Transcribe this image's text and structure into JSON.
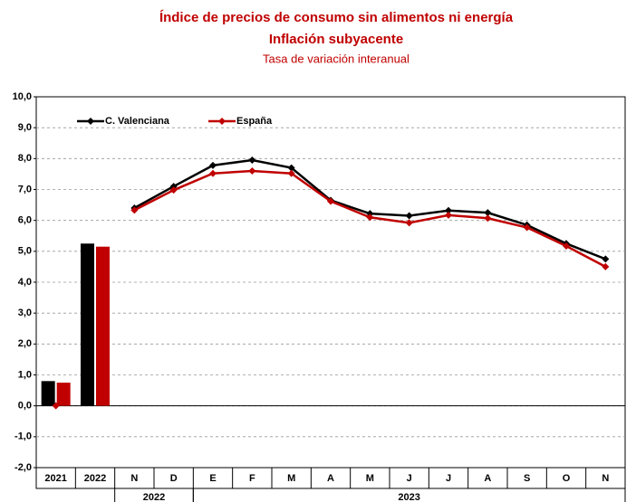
{
  "chart_data": {
    "type": "combo",
    "title": "Índice de precios de consumo sin alimentos ni energía",
    "subtitle": "Inflación subyacente",
    "subtitle2": "Tasa de variación interanual",
    "categories": [
      "2021",
      "2022",
      "N",
      "D",
      "E",
      "F",
      "M",
      "A",
      "M",
      "J",
      "J",
      "A",
      "S",
      "O",
      "N"
    ],
    "x_groups": [
      {
        "label": "2022",
        "span": [
          2,
          3
        ]
      },
      {
        "label": "2023",
        "span": [
          4,
          14
        ]
      }
    ],
    "series": [
      {
        "name": "C. Valenciana",
        "color": "#000000",
        "bar_values": [
          0.8,
          5.25,
          null,
          null,
          null,
          null,
          null,
          null,
          null,
          null,
          null,
          null,
          null,
          null,
          null
        ],
        "values": [
          null,
          null,
          6.4,
          7.1,
          7.78,
          7.95,
          7.7,
          6.65,
          6.22,
          6.15,
          6.32,
          6.25,
          5.85,
          5.25,
          4.75
        ]
      },
      {
        "name": "España",
        "color": "#c00000",
        "bar_values": [
          0.75,
          5.15,
          null,
          null,
          null,
          null,
          null,
          null,
          null,
          null,
          null,
          null,
          null,
          null,
          null
        ],
        "values": [
          0,
          null,
          6.33,
          6.98,
          7.52,
          7.6,
          7.52,
          6.62,
          6.1,
          5.92,
          6.17,
          6.07,
          5.77,
          5.17,
          4.5
        ]
      }
    ],
    "ylim": [
      -2,
      10
    ],
    "yticks": [
      {
        "value": -2,
        "label": "-2,0"
      },
      {
        "value": -1,
        "label": "-1,0"
      },
      {
        "value": 0,
        "label": "0,0"
      },
      {
        "value": 1,
        "label": "1,0"
      },
      {
        "value": 2,
        "label": "2,0"
      },
      {
        "value": 3,
        "label": "3,0"
      },
      {
        "value": 4,
        "label": "4,0"
      },
      {
        "value": 5,
        "label": "5,0"
      },
      {
        "value": 6,
        "label": "6,0"
      },
      {
        "value": 7,
        "label": "7,0"
      },
      {
        "value": 8,
        "label": "8,0"
      },
      {
        "value": 9,
        "label": "9,0"
      },
      {
        "value": 10,
        "label": "10,0"
      }
    ],
    "grid": true,
    "legend": "top-left"
  }
}
